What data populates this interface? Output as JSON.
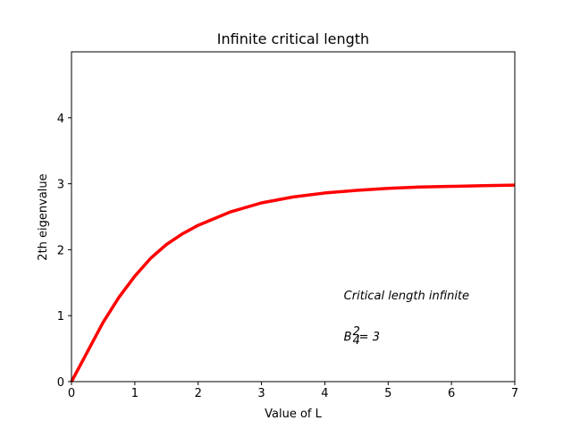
{
  "chart_data": {
    "type": "line",
    "title": "Infinite critical length",
    "xlabel": "Value of L",
    "ylabel": "2th eigenvalue",
    "xlim": [
      0,
      7
    ],
    "ylim": [
      0,
      5
    ],
    "x_ticks": [
      "0",
      "1",
      "2",
      "3",
      "4",
      "5",
      "6",
      "7"
    ],
    "y_ticks": [
      "0",
      "1",
      "2",
      "3",
      "4"
    ],
    "grid": false,
    "series": [
      {
        "color": "#ff0000",
        "x": [
          0,
          0.25,
          0.5,
          0.75,
          1.0,
          1.25,
          1.5,
          1.75,
          2.0,
          2.5,
          3.0,
          3.5,
          4.0,
          4.5,
          5.0,
          5.5,
          6.0,
          6.5,
          7.0
        ],
        "y": [
          0,
          0.45,
          0.9,
          1.28,
          1.6,
          1.87,
          2.08,
          2.24,
          2.37,
          2.57,
          2.71,
          2.8,
          2.86,
          2.9,
          2.93,
          2.95,
          2.96,
          2.97,
          2.98
        ]
      }
    ],
    "annotations": [
      {
        "text": "Critical length infinite",
        "x": 4.3,
        "y": 1.25
      },
      {
        "text_base": "B",
        "text_sup": "2",
        "text_sub": "4",
        "text_rest": "= 3",
        "x": 4.3,
        "y": 0.62
      }
    ]
  }
}
